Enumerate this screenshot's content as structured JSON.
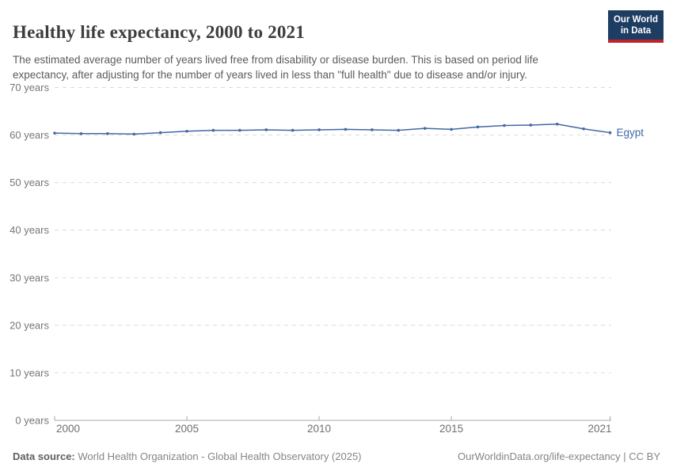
{
  "header": {
    "title": "Healthy life expectancy, 2000 to 2021",
    "subtitle_lines": [
      "The estimated average number of years lived free from disability or disease burden. This is based on period life",
      "expectancy, after adjusting for the number of years lived in less than \"full health\" due to disease and/or injury."
    ]
  },
  "logo": {
    "line1": "Our World",
    "line2": "in Data",
    "bg_color": "#1d3d63",
    "stripe_color": "#c0232d"
  },
  "chart_data": {
    "type": "line",
    "title": "Healthy life expectancy, 2000 to 2021",
    "xlabel": "",
    "ylabel": "",
    "ylim": [
      0,
      70
    ],
    "yticks": [
      0,
      10,
      20,
      30,
      40,
      50,
      60,
      70
    ],
    "ytick_suffix": " years",
    "xticks": [
      2000,
      2005,
      2010,
      2015,
      2021
    ],
    "grid": "horizontal-dashed",
    "legend_position": "end-of-line",
    "x": [
      2000,
      2001,
      2002,
      2003,
      2004,
      2005,
      2006,
      2007,
      2008,
      2009,
      2010,
      2011,
      2012,
      2013,
      2014,
      2015,
      2016,
      2017,
      2018,
      2019,
      2020,
      2021
    ],
    "series": [
      {
        "name": "Egypt",
        "color": "#4268a4",
        "values": [
          60.4,
          60.3,
          60.3,
          60.2,
          60.5,
          60.8,
          61.0,
          61.0,
          61.1,
          61.0,
          61.1,
          61.2,
          61.1,
          61.0,
          61.4,
          61.2,
          61.7,
          62.0,
          62.1,
          62.3,
          61.3,
          60.5
        ]
      }
    ]
  },
  "colors": {
    "grid": "#dcdcdc",
    "axis": "#a8a8a8",
    "ytick_label": "#767676",
    "xtick_label": "#6e6e6e"
  },
  "footer": {
    "data_source_label": "Data source:",
    "data_source_text": " World Health Organization - Global Health Observatory (2025)",
    "attribution": "OurWorldinData.org/life-expectancy | CC BY"
  }
}
